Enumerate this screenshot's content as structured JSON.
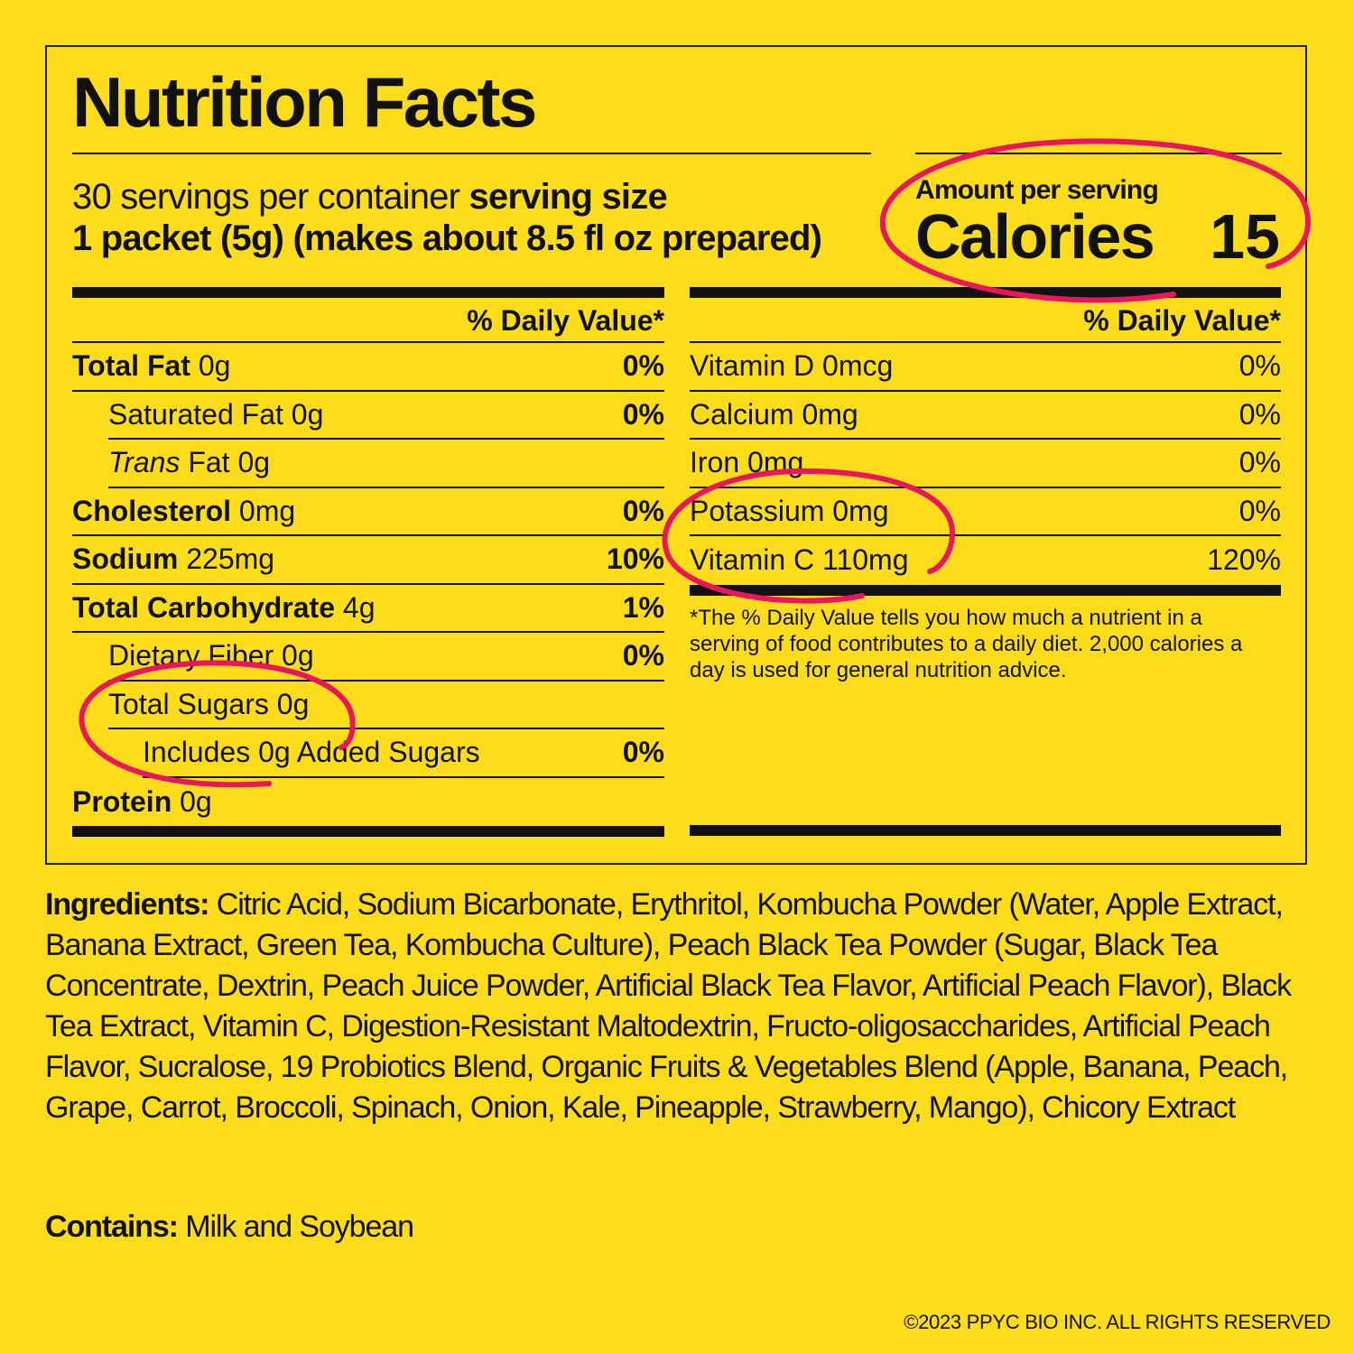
{
  "title": "Nutrition Facts",
  "servings": {
    "per_container": "30 servings per container",
    "size_label": "serving size",
    "size_value": "1 packet (5g) (makes about 8.5 fl oz prepared)"
  },
  "calories": {
    "amount_label": "Amount per serving",
    "label": "Calories",
    "value": "15"
  },
  "daily_value_header": "% Daily Value*",
  "left_rows": [
    {
      "name": "Total Fat",
      "amount": "0g",
      "pct": "0%"
    },
    {
      "name": "Saturated Fat",
      "amount": "0g",
      "pct": "0%"
    },
    {
      "name_italic": "Trans",
      "name": "Fat",
      "amount": "0g",
      "pct": ""
    },
    {
      "name": "Cholesterol",
      "amount": "0mg",
      "pct": "0%"
    },
    {
      "name": "Sodium",
      "amount": "225mg",
      "pct": "10%"
    },
    {
      "name": "Total Carbohydrate",
      "amount": "4g",
      "pct": "1%"
    },
    {
      "name": "Dietary Fiber",
      "amount": "0g",
      "pct": "0%"
    },
    {
      "name": "Total Sugars",
      "amount": "0g",
      "pct": ""
    },
    {
      "name": "Includes 0g Added Sugars",
      "pct": "0%"
    },
    {
      "name": "Protein",
      "amount": "0g",
      "pct": ""
    }
  ],
  "right_rows": [
    {
      "name": "Vitamin D",
      "amount": "0mcg",
      "pct": "0%"
    },
    {
      "name": "Calcium",
      "amount": "0mg",
      "pct": "0%"
    },
    {
      "name": "Iron",
      "amount": "0mg",
      "pct": "0%"
    },
    {
      "name": "Potassium",
      "amount": "0mg",
      "pct": "0%"
    },
    {
      "name": "Vitamin C",
      "amount": "110mg",
      "pct": "120%"
    }
  ],
  "footnote": "*The % Daily Value tells you how much a nutrient in a serving of food contributes to a daily diet. 2,000 calories a day is used for general nutrition advice.",
  "ingredients": {
    "label": "Ingredients:",
    "text": "Citric Acid, Sodium Bicarbonate, Erythritol, Kombucha Powder (Water, Apple Extract, Banana Extract, Green Tea, Kombucha Culture), Peach Black Tea Powder (Sugar, Black Tea Concentrate, Dextrin, Peach Juice Powder, Artificial Black Tea Flavor, Artificial Peach Flavor), Black Tea Extract, Vitamin C, Digestion-Resistant Maltodextrin, Fructo-oligosaccharides, Artificial Peach Flavor, Sucralose, 19 Probiotics Blend, Organic Fruits & Vegetables Blend (Apple, Banana, Peach, Grape, Carrot, Broccoli, Spinach, Onion, Kale, Pineapple, Strawberry, Mango), Chicory Extract"
  },
  "contains": {
    "label": "Contains:",
    "text": "Milk and Soybean"
  },
  "copyright": "©2023 PPYC BIO INC. ALL RIGHTS RESERVED",
  "colors": {
    "background": "#fddc1c",
    "highlight_circle": "#e8175d"
  }
}
